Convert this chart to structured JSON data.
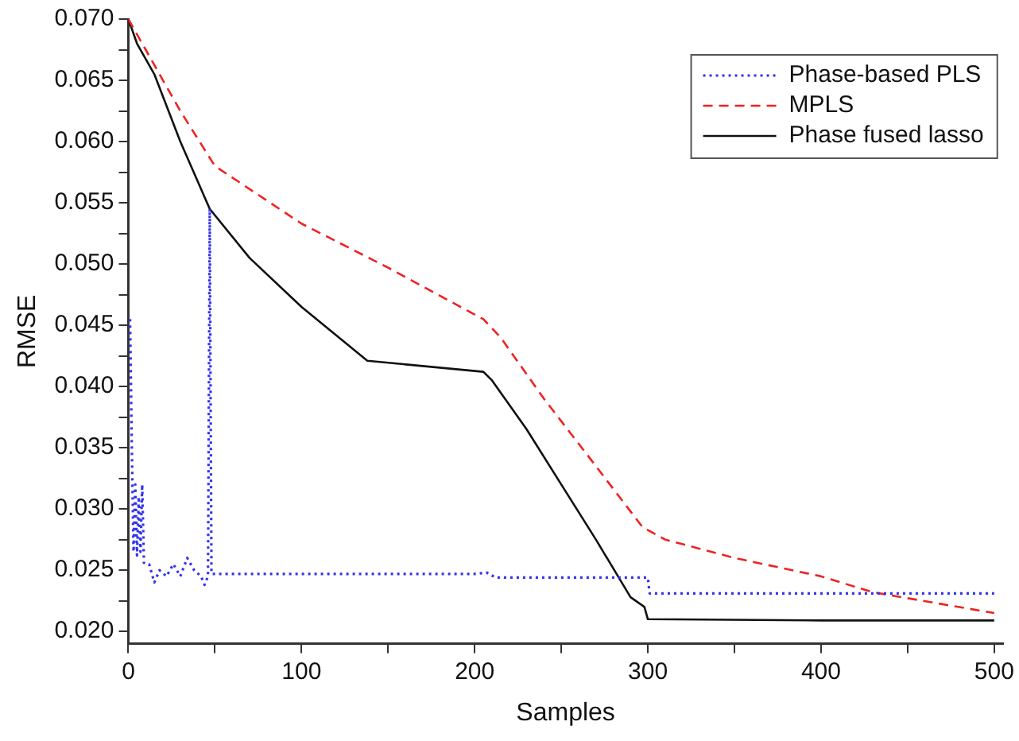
{
  "chart_data": {
    "type": "line",
    "xlabel": "Samples",
    "ylabel": "RMSE",
    "xlim": [
      0,
      505
    ],
    "xticks": [
      0,
      {
        "value": 50,
        "label": null
      },
      100,
      {
        "value": 150,
        "label": null
      },
      200,
      {
        "value": 250,
        "label": null
      },
      300,
      {
        "value": 350,
        "label": null
      },
      400,
      {
        "value": 450,
        "label": null
      },
      500
    ],
    "ylim": [
      0.019,
      0.07
    ],
    "yticks": [
      {
        "value": 0.02,
        "label": "0.020"
      },
      {
        "value": 0.0225,
        "label": null
      },
      {
        "value": 0.025,
        "label": "0.025"
      },
      {
        "value": 0.0275,
        "label": null
      },
      {
        "value": 0.03,
        "label": "0.030"
      },
      {
        "value": 0.0325,
        "label": null
      },
      {
        "value": 0.035,
        "label": "0.035"
      },
      {
        "value": 0.0375,
        "label": null
      },
      {
        "value": 0.04,
        "label": "0.040"
      },
      {
        "value": 0.0425,
        "label": null
      },
      {
        "value": 0.045,
        "label": "0.045"
      },
      {
        "value": 0.0475,
        "label": null
      },
      {
        "value": 0.05,
        "label": "0.050"
      },
      {
        "value": 0.0525,
        "label": null
      },
      {
        "value": 0.055,
        "label": "0.055"
      },
      {
        "value": 0.0575,
        "label": null
      },
      {
        "value": 0.06,
        "label": "0.060"
      },
      {
        "value": 0.0625,
        "label": null
      },
      {
        "value": 0.065,
        "label": "0.065"
      },
      {
        "value": 0.0675,
        "label": null
      },
      {
        "value": 0.07,
        "label": "0.070"
      }
    ],
    "grid": false,
    "legend": "top right",
    "marker": "none",
    "series": [
      {
        "name": "Phase-based PLS",
        "color": "#3333ee",
        "line_style": "dotted",
        "x": [
          1,
          2,
          3,
          4,
          5,
          6,
          7,
          8,
          9,
          12,
          15,
          18,
          22,
          26,
          30,
          34,
          38,
          42,
          44,
          46,
          47,
          48,
          100,
          200,
          207,
          212,
          300,
          301,
          500
        ],
        "values": [
          0.0455,
          0.035,
          0.0265,
          0.032,
          0.0262,
          0.031,
          0.0265,
          0.032,
          0.0256,
          0.0255,
          0.024,
          0.025,
          0.0245,
          0.0255,
          0.0245,
          0.026,
          0.025,
          0.0245,
          0.0238,
          0.0245,
          0.0545,
          0.0247,
          0.0247,
          0.0247,
          0.0248,
          0.0244,
          0.0244,
          0.0231,
          0.0231
        ]
      },
      {
        "name": "MPLS",
        "color": "#ee2222",
        "line_style": "dashed",
        "x": [
          0,
          10,
          30,
          50,
          100,
          150,
          205,
          215,
          240,
          270,
          297,
          310,
          350,
          400,
          430,
          500
        ],
        "values": [
          0.07,
          0.0675,
          0.0625,
          0.058,
          0.0533,
          0.0497,
          0.0455,
          0.044,
          0.039,
          0.0335,
          0.0285,
          0.0275,
          0.026,
          0.0245,
          0.0232,
          0.0215
        ]
      },
      {
        "name": "Phase fused lasso",
        "color": "#111111",
        "line_style": "solid",
        "x": [
          0,
          5,
          15,
          30,
          47,
          70,
          100,
          138,
          205,
          210,
          230,
          250,
          270,
          290,
          298,
          300,
          400,
          500
        ],
        "values": [
          0.07,
          0.068,
          0.0655,
          0.06,
          0.0545,
          0.0505,
          0.0465,
          0.0421,
          0.0412,
          0.0405,
          0.0365,
          0.032,
          0.0275,
          0.0228,
          0.022,
          0.021,
          0.0209,
          0.0209
        ]
      }
    ]
  }
}
